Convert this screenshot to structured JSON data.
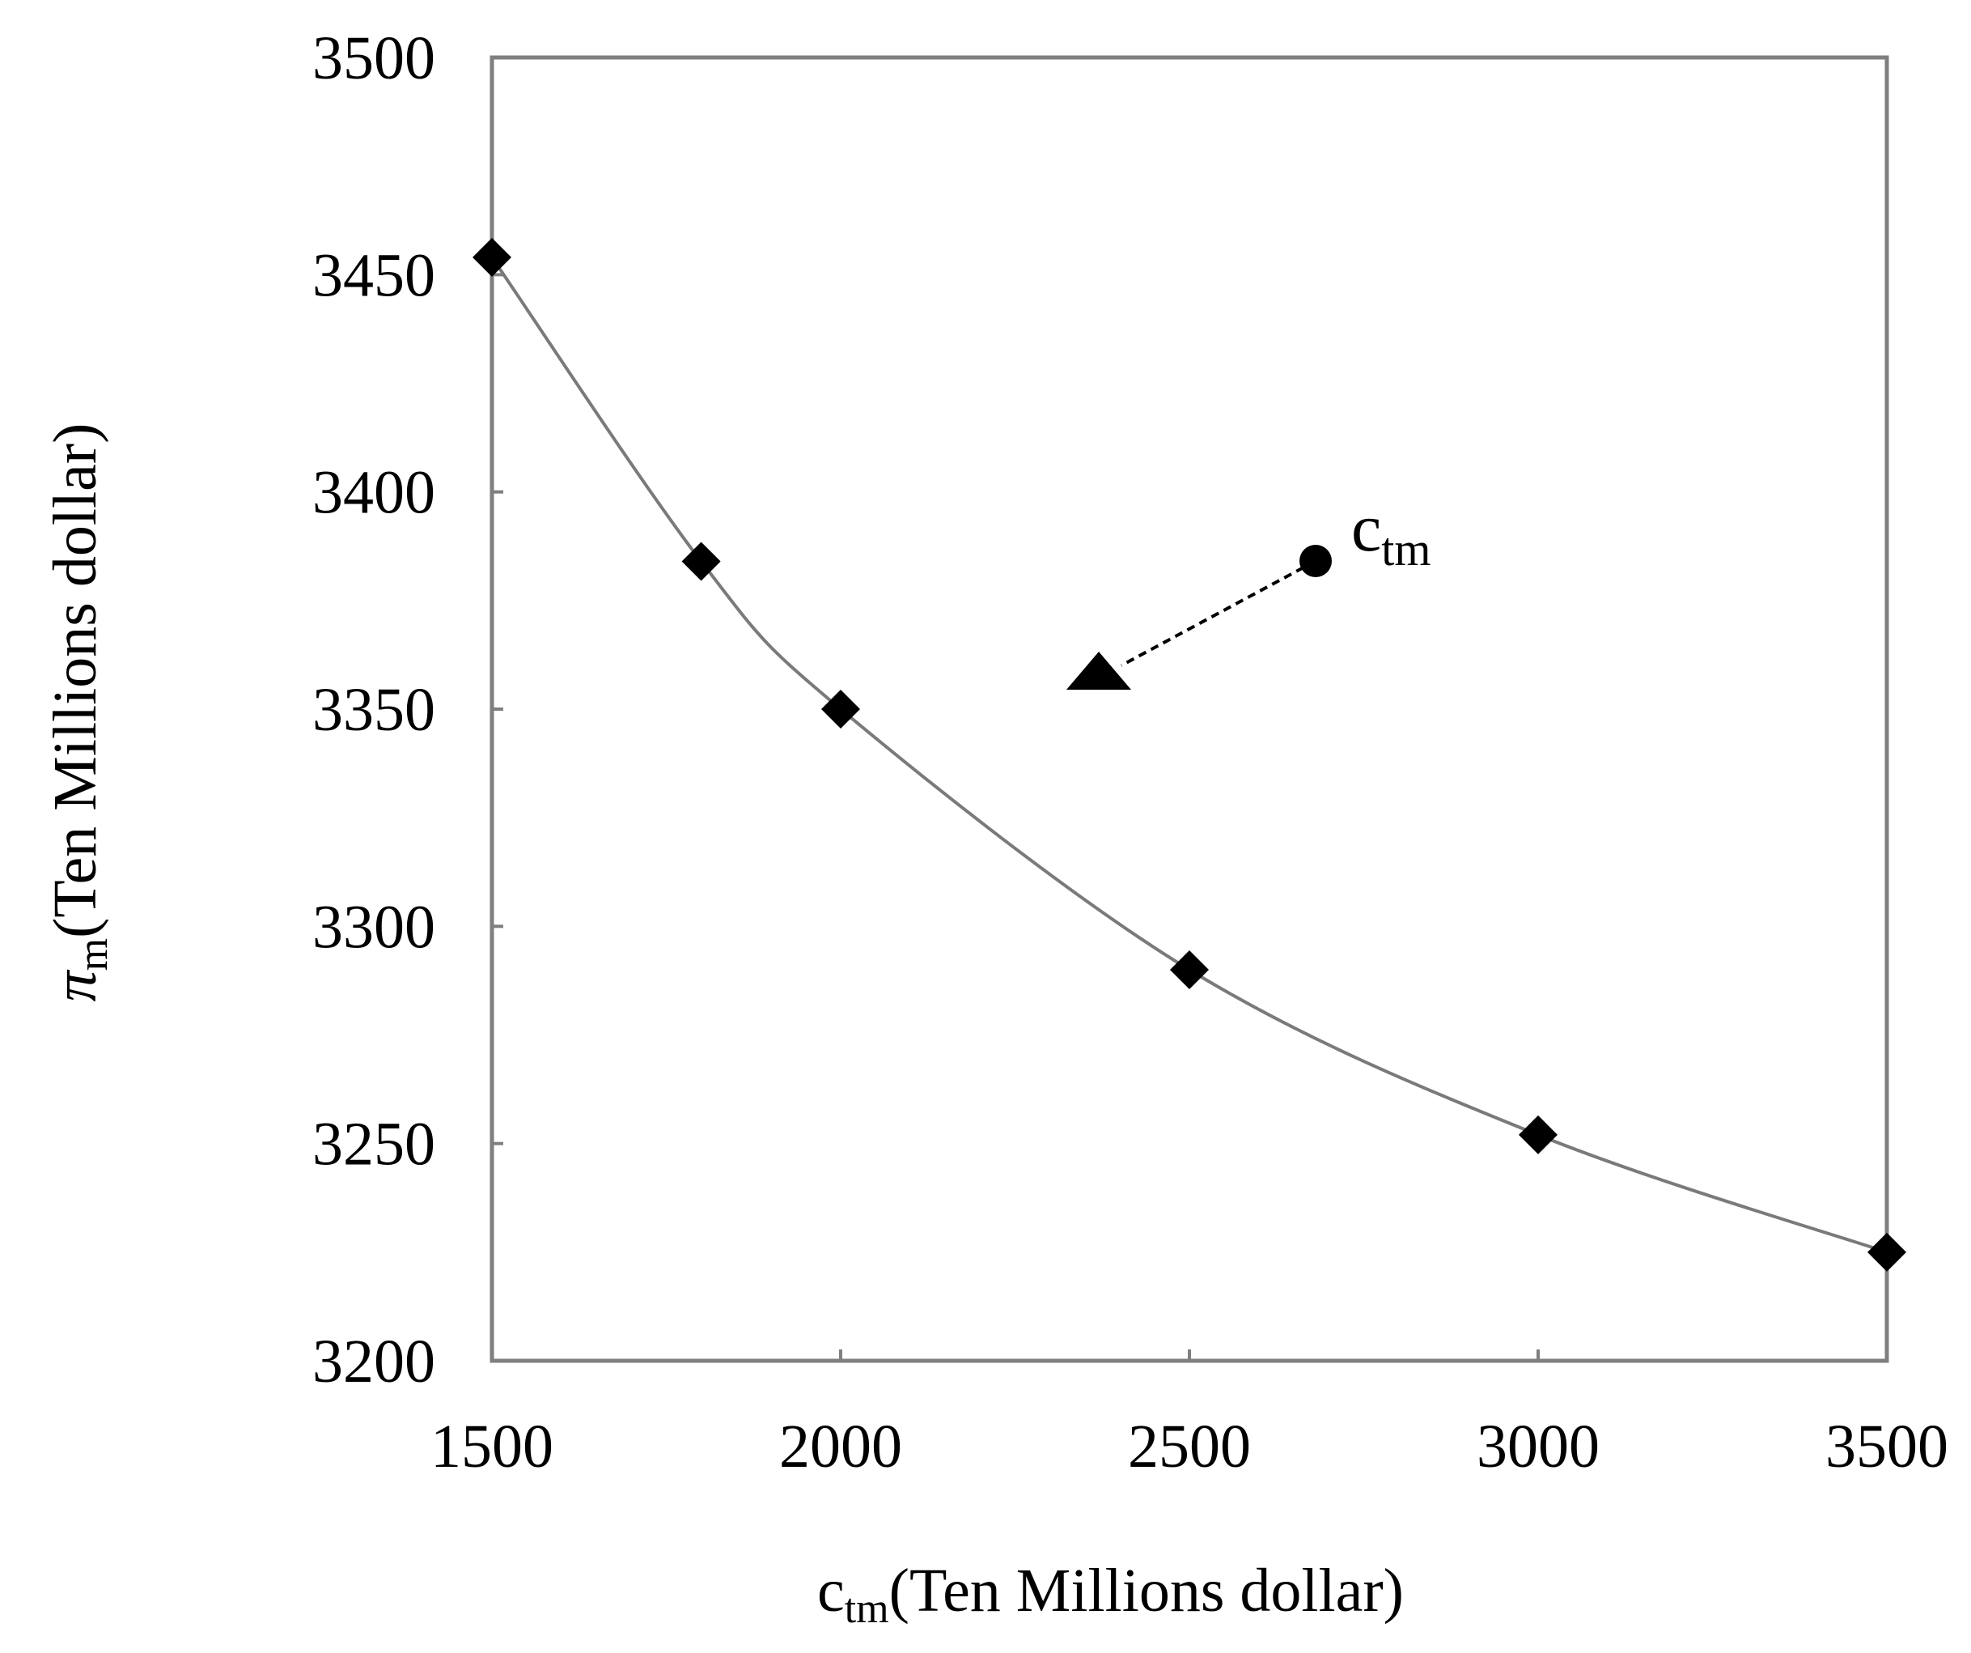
{
  "chart_data": {
    "type": "line",
    "title": "",
    "xlabel": {
      "symbol": "c",
      "subscript": "tm",
      "unit": "(Ten Millions dollar)"
    },
    "ylabel": {
      "symbol": "π",
      "subscript": "m",
      "unit": "(Ten Millions dollar)"
    },
    "xlim": [
      1500,
      3500
    ],
    "ylim": [
      3200,
      3500
    ],
    "x_ticks": [
      "1500",
      "2000",
      "2500",
      "3000",
      "3500"
    ],
    "y_ticks": [
      "3200",
      "3250",
      "3300",
      "3350",
      "3400",
      "3450",
      "3500"
    ],
    "grid": false,
    "series": [
      {
        "marker": "diamond",
        "line_color": "#7a7a7a",
        "marker_color": "#000000",
        "points": [
          {
            "x": 1500,
            "y": 3454
          },
          {
            "x": 1800,
            "y": 3384
          },
          {
            "x": 2000,
            "y": 3350
          },
          {
            "x": 2500,
            "y": 3290
          },
          {
            "x": 3000,
            "y": 3252
          },
          {
            "x": 3500,
            "y": 3225
          }
        ]
      }
    ],
    "annotation": {
      "symbol": "c",
      "subscript": "tm",
      "description": "dashed arrow from circle to triangle pointing toward lower-left (increase in c_tm)"
    }
  }
}
